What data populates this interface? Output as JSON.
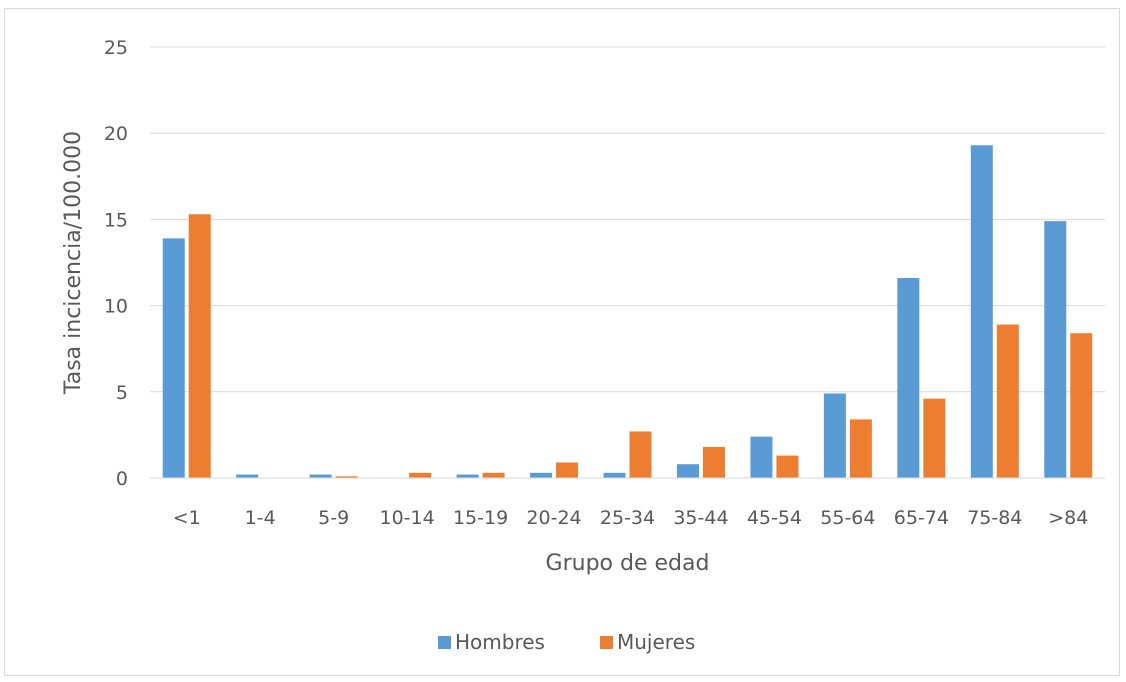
{
  "chart_data": {
    "type": "bar",
    "title": "",
    "xlabel": "Grupo de edad",
    "ylabel": "Tasa incicencia/100.000",
    "categories": [
      "<1",
      "1-4",
      "5-9",
      "10-14",
      "15-19",
      "20-24",
      "25-34",
      "35-44",
      "45-54",
      "55-64",
      "65-74",
      "75-84",
      ">84"
    ],
    "series": [
      {
        "name": "Hombres",
        "color": "#5b9bd5",
        "values": [
          13.9,
          0.2,
          0.2,
          0,
          0.2,
          0.3,
          0.3,
          0.8,
          2.4,
          4.9,
          11.6,
          19.3,
          14.9
        ]
      },
      {
        "name": "Mujeres",
        "color": "#ed7d31",
        "values": [
          15.3,
          0,
          0.1,
          0.3,
          0.3,
          0.9,
          2.7,
          1.8,
          1.3,
          3.4,
          4.6,
          8.9,
          8.4
        ]
      }
    ],
    "ylim": [
      0,
      25
    ],
    "yticks": [
      "0",
      "5",
      "10",
      "15",
      "20",
      "25"
    ],
    "grid": true,
    "legend_position": "bottom"
  }
}
